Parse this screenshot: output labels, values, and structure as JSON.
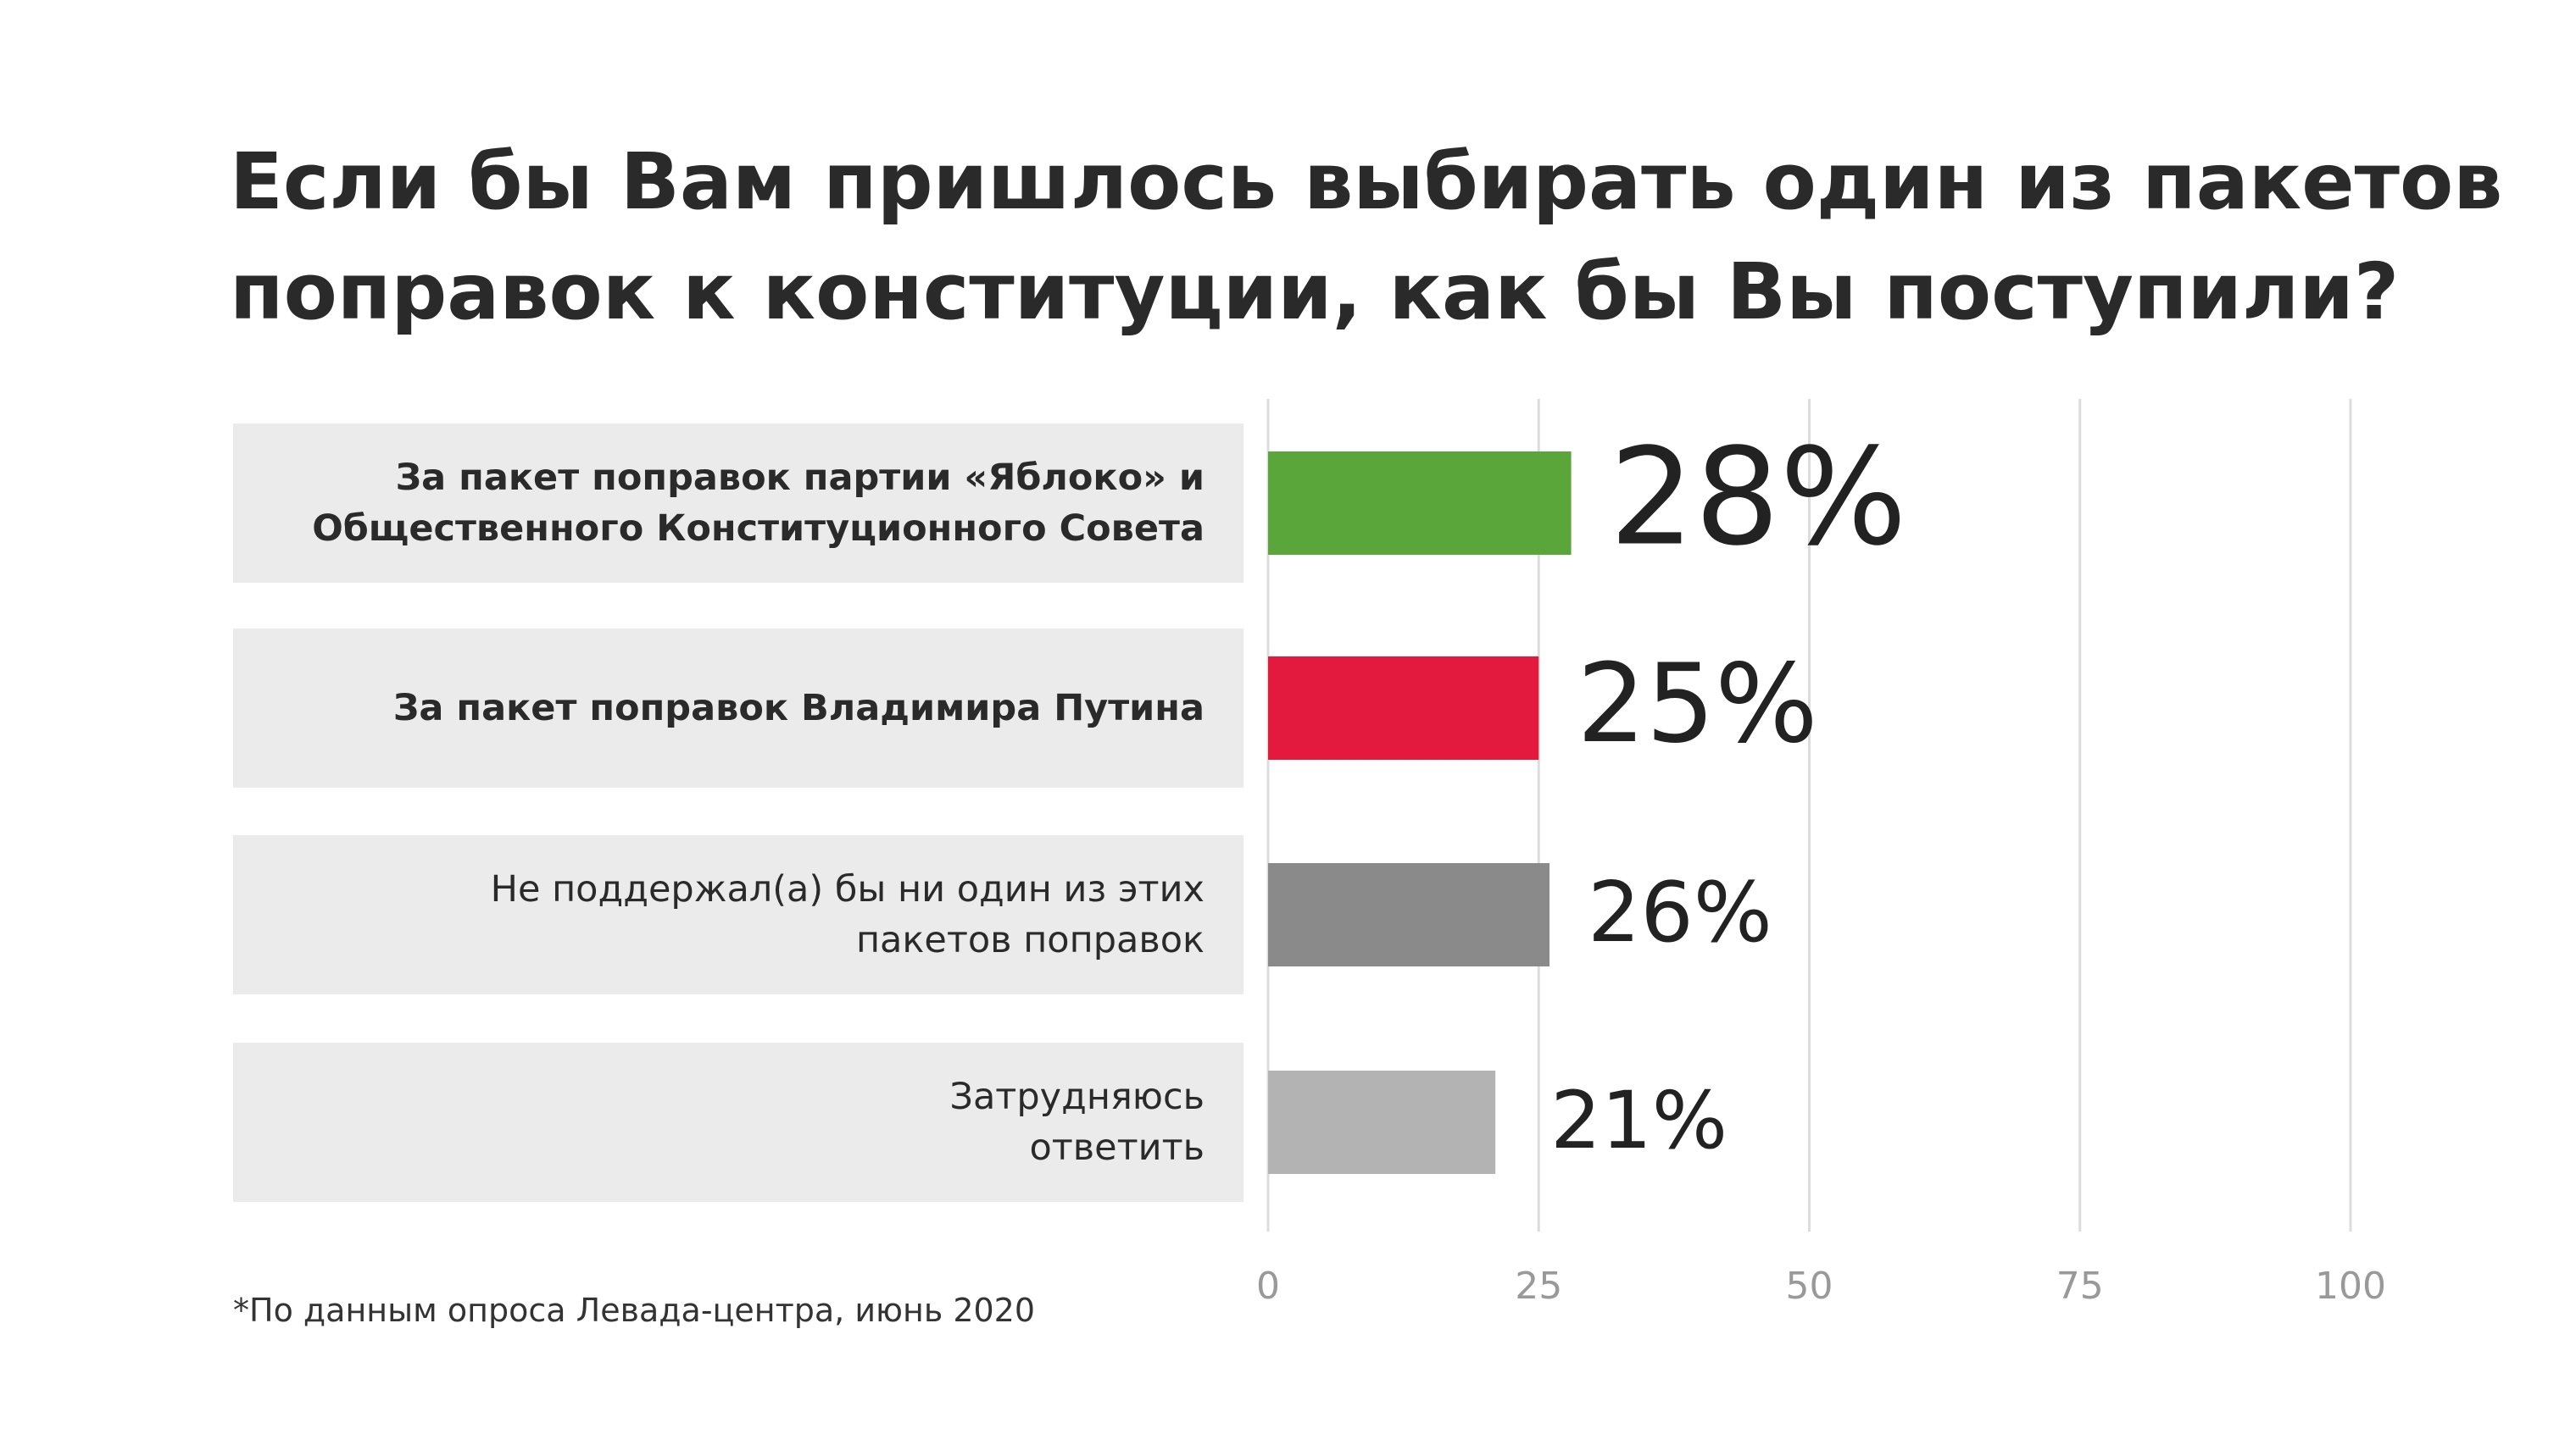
{
  "chart_data": {
    "type": "bar",
    "orientation": "horizontal",
    "title": "Если бы Вам пришлось выбирать один из пакетов\nпоправок к конституции, как бы Вы поступили?",
    "categories": [
      "За пакет поправок партии «Яблоко» и\nОбщественного Конституционного Совета",
      "За пакет поправок Владимира Путина",
      "Не поддержал(а) бы ни один из этих\nпакетов поправок",
      "Затрудняюсь\nответить"
    ],
    "values": [
      28,
      25,
      26,
      21
    ],
    "value_labels": [
      "28%",
      "25%",
      "26%",
      "21%"
    ],
    "colors": [
      "#5ba63a",
      "#e31a3e",
      "#8a8a8a",
      "#b3b3b3"
    ],
    "xlim": [
      0,
      100
    ],
    "xticks": [
      0,
      25,
      50,
      75,
      100
    ],
    "grid": true,
    "footnote": "*По данным опроса Левада-центра, июнь 2020"
  }
}
